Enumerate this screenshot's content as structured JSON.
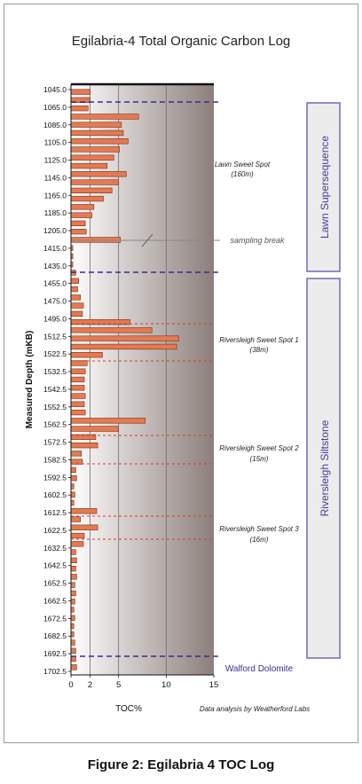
{
  "figure": {
    "caption": "Figure 2: Egilabria 4 TOC Log"
  },
  "colors": {
    "bar_fill": "#e47a53",
    "bar_stroke": "#7a2e12",
    "formation_top_line": "#3a2d8f",
    "sweet_spot_line": "#e03a2a",
    "background_gradient_start": "#ffffff",
    "background_gradient_end": "#8c7f7b",
    "sequence_box_stroke": "#7866b8",
    "sequence_box_fill": "#ececec"
  },
  "chart_data": {
    "type": "bar",
    "orientation": "horizontal",
    "title": "Egilabria-4 Total Organic Carbon Log",
    "xlabel": "TOC%",
    "ylabel": "Measured Depth (mKB)",
    "xlim": [
      0,
      15
    ],
    "x_ticks": [
      0,
      2,
      5,
      10,
      15
    ],
    "grid": "vertical lines at 2, 5 and 10",
    "depth_labels": [
      "1045.0",
      "1065.0",
      "1085.0",
      "1105.0",
      "1125.0",
      "1145.0",
      "1165.0",
      "1185.0",
      "1205.0",
      "1415.0",
      "1435.0",
      "1455.0",
      "1475.0",
      "1495.0",
      "1512.5",
      "1522.5",
      "1532.5",
      "1542.5",
      "1552.5",
      "1562.5",
      "1572.5",
      "1582.5",
      "1592.5",
      "1602.5",
      "1612.5",
      "1622.5",
      "1632.5",
      "1642.5",
      "1652.5",
      "1662.5",
      "1672.5",
      "1682.5",
      "1692.5",
      "1702.5"
    ],
    "values": [
      2.0,
      2.0,
      1.8,
      7.1,
      5.3,
      5.5,
      6.0,
      5.1,
      4.5,
      3.8,
      5.8,
      5.0,
      4.3,
      3.4,
      2.4,
      2.2,
      1.5,
      1.6,
      5.2,
      0.2,
      0.2,
      0.2,
      0.5,
      0.8,
      0.7,
      1.0,
      1.3,
      1.2,
      6.2,
      8.5,
      11.3,
      11.1,
      3.3,
      1.7,
      1.5,
      1.4,
      1.4,
      1.5,
      1.4,
      1.5,
      7.8,
      5.0,
      2.6,
      2.8,
      1.1,
      1.2,
      0.5,
      0.6,
      0.3,
      0.4,
      0.3,
      2.7,
      1.0,
      2.8,
      1.4,
      1.3,
      0.5,
      0.6,
      0.5,
      0.6,
      0.4,
      0.5,
      0.4,
      0.3,
      0.4,
      0.3,
      0.3,
      0.4,
      0.5,
      0.5,
      0.6
    ],
    "formation_tops": [
      "Walford Dolomite"
    ],
    "sequences": [
      "Lawn Supersequence",
      "Riversleigh Siltstone"
    ],
    "annotations": {
      "lawn_spot_title": "Lawn Sweet Spot",
      "lawn_spot_thickness": "(160m)",
      "sampling_break": "sampling break",
      "rss1_title": "Riversleigh Sweet Spot 1",
      "rss1_thickness": "(38m)",
      "rss2_title": "Riversleigh Sweet Spot 2",
      "rss2_thickness": "(15m)",
      "rss3_title": "Riversleigh Sweet Spot 3",
      "rss3_thickness": "(16m)",
      "credit": "Data analysis by Weatherford Labs"
    }
  }
}
